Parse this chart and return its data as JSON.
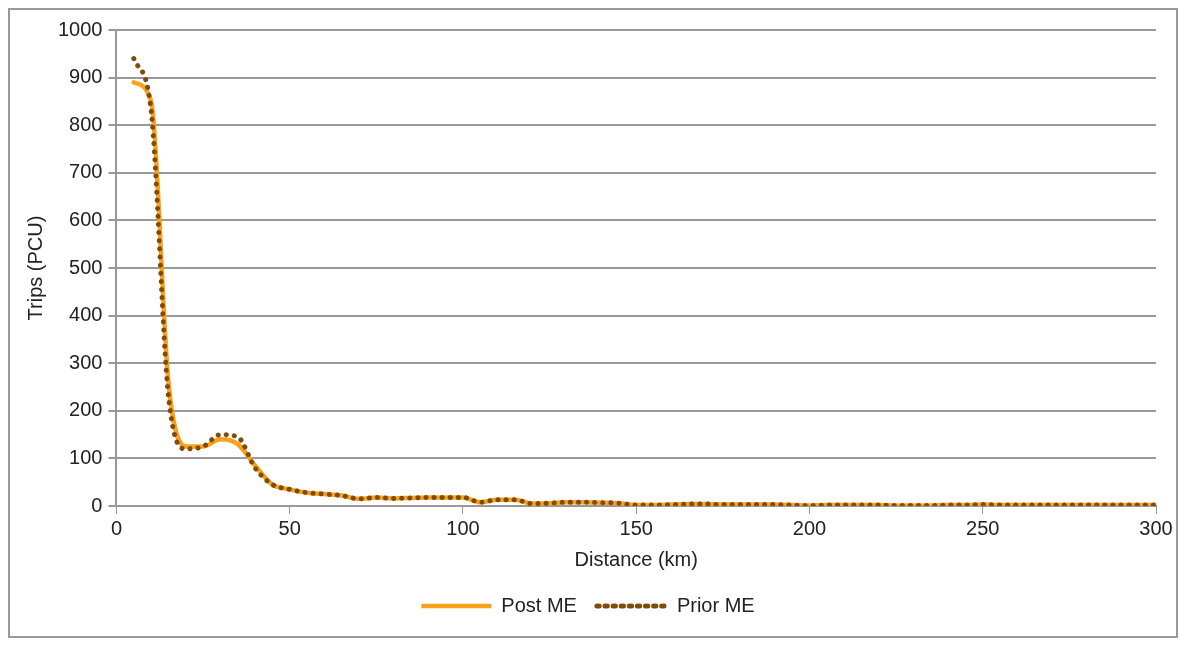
{
  "chart_data": {
    "type": "line",
    "xlabel": "Distance (km)",
    "ylabel": "Trips (PCU)",
    "x": [
      5,
      10,
      15,
      20,
      25,
      30,
      35,
      40,
      45,
      50,
      55,
      60,
      65,
      70,
      75,
      80,
      85,
      90,
      95,
      100,
      105,
      110,
      115,
      120,
      125,
      130,
      135,
      140,
      145,
      150,
      155,
      160,
      165,
      170,
      175,
      180,
      185,
      190,
      195,
      200,
      205,
      210,
      215,
      220,
      225,
      230,
      235,
      240,
      245,
      250,
      255,
      260,
      265,
      270,
      275,
      280,
      285,
      290,
      295,
      300
    ],
    "series": [
      {
        "name": "Post ME",
        "color": "#f9a11b",
        "line_style": "solid",
        "values": [
          890,
          850,
          260,
          125,
          125,
          140,
          130,
          85,
          45,
          35,
          28,
          25,
          22,
          15,
          18,
          16,
          17,
          18,
          18,
          18,
          8,
          13,
          13,
          5,
          6,
          8,
          8,
          7,
          6,
          2,
          2,
          3,
          4,
          4,
          3,
          3,
          3,
          3,
          2,
          1,
          2,
          2,
          2,
          2,
          1,
          1,
          1,
          2,
          2,
          3,
          2,
          2,
          2,
          2,
          2,
          2,
          2,
          2,
          2,
          2
        ]
      },
      {
        "name": "Prior ME",
        "color": "#7f4b0a",
        "line_style": "dotted",
        "values": [
          940,
          830,
          230,
          120,
          125,
          150,
          145,
          80,
          45,
          35,
          28,
          25,
          22,
          15,
          18,
          16,
          17,
          18,
          18,
          18,
          8,
          13,
          13,
          5,
          6,
          8,
          8,
          7,
          6,
          2,
          2,
          3,
          4,
          4,
          3,
          3,
          3,
          3,
          2,
          1,
          2,
          2,
          2,
          2,
          1,
          1,
          1,
          2,
          2,
          3,
          2,
          2,
          2,
          2,
          2,
          2,
          2,
          2,
          2,
          2
        ]
      }
    ],
    "xlim": [
      0,
      300
    ],
    "xticks": [
      0,
      50,
      100,
      150,
      200,
      250,
      300
    ],
    "ylim": [
      0,
      1000
    ],
    "yticks": [
      0,
      100,
      200,
      300,
      400,
      500,
      600,
      700,
      800,
      900,
      1000
    ],
    "grid": "y",
    "legend": "bottom",
    "marker": "none"
  }
}
